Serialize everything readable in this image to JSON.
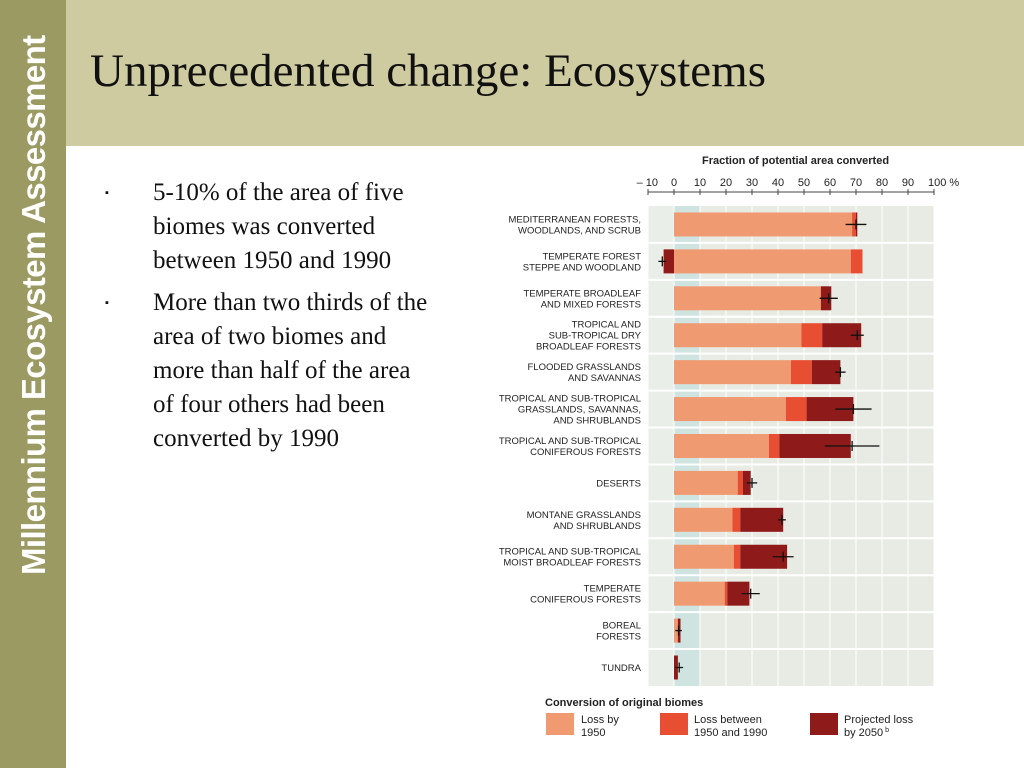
{
  "sidebar": {
    "text": "Millennium Ecosystem Assessment"
  },
  "slide": {
    "title": "Unprecedented change:  Ecosystems"
  },
  "bullets": [
    {
      "marker": "▪",
      "text": "5-10% of the area of five biomes was converted between 1950 and 1990"
    },
    {
      "marker": "▪",
      "text": "More than two thirds of the area of two biomes and more than half of the area of four others had been converted by 1990"
    }
  ],
  "colors": {
    "sidebar": "#9a9a62",
    "header": "#cfcba0",
    "by1950": "#f09a72",
    "between": "#e84e32",
    "projected": "#8e1a1a"
  },
  "chart_data": {
    "type": "bar",
    "orientation": "horizontal",
    "stacked": true,
    "title": "Fraction of potential area converted",
    "xlim": [
      -10,
      100
    ],
    "x_ticks": [
      {
        "value": -10,
        "label": "– 10"
      },
      {
        "value": 0,
        "label": "0"
      },
      {
        "value": 10,
        "label": "10"
      },
      {
        "value": 20,
        "label": "20"
      },
      {
        "value": 30,
        "label": "30"
      },
      {
        "value": 40,
        "label": "40"
      },
      {
        "value": 50,
        "label": "50"
      },
      {
        "value": 60,
        "label": "60"
      },
      {
        "value": 70,
        "label": "70"
      },
      {
        "value": 80,
        "label": "80"
      },
      {
        "value": 90,
        "label": "90"
      },
      {
        "value": 100,
        "label": "100 %"
      }
    ],
    "categories": [
      [
        "MEDITERRANEAN FORESTS,",
        "WOODLANDS, AND SCRUB"
      ],
      [
        "TEMPERATE FOREST",
        "STEPPE AND WOODLAND"
      ],
      [
        "TEMPERATE BROADLEAF",
        "AND MIXED FORESTS"
      ],
      [
        "TROPICAL AND",
        "SUB-TROPICAL DRY",
        "BROADLEAF FORESTS"
      ],
      [
        "FLOODED GRASSLANDS",
        "AND SAVANNAS"
      ],
      [
        "TROPICAL AND SUB-TROPICAL",
        "GRASSLANDS, SAVANNAS,",
        "AND SHRUBLANDS"
      ],
      [
        "TROPICAL AND SUB-TROPICAL",
        "CONIFEROUS FORESTS"
      ],
      [
        "DESERTS"
      ],
      [
        "MONTANE GRASSLANDS",
        "AND SHRUBLANDS"
      ],
      [
        "TROPICAL AND SUB-TROPICAL",
        "MOIST BROADLEAF FORESTS"
      ],
      [
        "TEMPERATE",
        "CONIFEROUS FORESTS"
      ],
      [
        "BOREAL",
        "FORESTS"
      ],
      [
        "TUNDRA"
      ]
    ],
    "series": [
      {
        "key": "by1950",
        "values": [
          68.5,
          68,
          56.5,
          49,
          45,
          43,
          36.5,
          24.5,
          22.5,
          23,
          19.5,
          1.5,
          0
        ]
      },
      {
        "key": "between",
        "values": [
          1.5,
          4.5,
          0,
          8,
          8,
          8,
          4,
          2,
          3,
          2.5,
          1,
          0,
          0
        ]
      },
      {
        "key": "projected",
        "values": [
          0.5,
          -4,
          4,
          15,
          11,
          18,
          27.5,
          3,
          16.5,
          18,
          8.5,
          1,
          1.5
        ]
      }
    ],
    "error_bars": [
      [
        66,
        74
      ],
      [
        -6,
        -3
      ],
      [
        56,
        63
      ],
      [
        68,
        73
      ],
      [
        62,
        66
      ],
      [
        62,
        76
      ],
      [
        58,
        79
      ],
      [
        28,
        32
      ],
      [
        40,
        43
      ],
      [
        38,
        46
      ],
      [
        26,
        33
      ],
      [
        0.5,
        3
      ],
      [
        0.5,
        3.5
      ]
    ],
    "legend": {
      "title": "Conversion of original biomes",
      "items": [
        {
          "key": "by1950",
          "label": [
            "Loss by",
            "1950"
          ]
        },
        {
          "key": "between",
          "label": [
            "Loss between",
            "1950 and 1990"
          ]
        },
        {
          "key": "projected",
          "label": [
            "Projected loss",
            "by 2050"
          ],
          "superscript": "b"
        }
      ],
      "position": "bottom"
    }
  }
}
